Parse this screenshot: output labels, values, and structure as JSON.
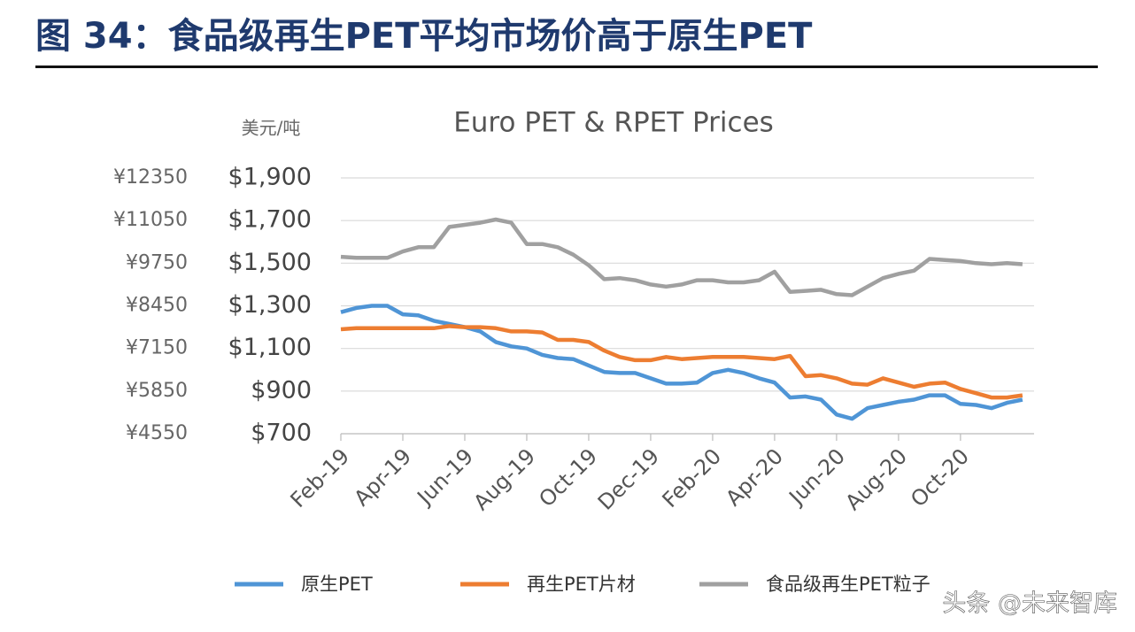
{
  "figure_title": "图 34：食品级再生PET平均市场价高于原生PET",
  "watermark": "头条 @未来智库",
  "chart_data": {
    "type": "line",
    "title": "Euro PET & RPET Prices",
    "y_label": "美元/吨",
    "categories": [
      "Feb-19",
      null,
      null,
      null,
      "Apr-19",
      null,
      null,
      null,
      "Jun-19",
      null,
      null,
      null,
      "Aug-19",
      null,
      null,
      null,
      "Oct-19",
      null,
      null,
      null,
      "Dec-19",
      null,
      null,
      null,
      "Feb-20",
      null,
      null,
      null,
      "Apr-20",
      null,
      null,
      null,
      "Jun-20",
      null,
      null,
      null,
      "Aug-20",
      null,
      null,
      null,
      "Oct-20",
      null,
      null,
      null,
      null
    ],
    "series": [
      {
        "name": "原生PET",
        "color": "#4f95d6",
        "values": [
          1270,
          1290,
          1300,
          1300,
          1260,
          1255,
          1230,
          1215,
          1200,
          1180,
          1130,
          1110,
          1100,
          1070,
          1055,
          1050,
          1020,
          990,
          985,
          985,
          960,
          935,
          935,
          940,
          985,
          1000,
          985,
          960,
          940,
          870,
          875,
          860,
          790,
          770,
          820,
          835,
          850,
          860,
          880,
          880,
          840,
          835,
          820,
          845,
          860
        ]
      },
      {
        "name": "再生PET片材",
        "color": "#ed7d31",
        "values": [
          1190,
          1195,
          1195,
          1195,
          1195,
          1195,
          1195,
          1205,
          1200,
          1200,
          1195,
          1180,
          1180,
          1175,
          1140,
          1140,
          1130,
          1090,
          1060,
          1045,
          1045,
          1060,
          1050,
          1055,
          1060,
          1060,
          1060,
          1055,
          1050,
          1065,
          970,
          975,
          960,
          935,
          930,
          960,
          940,
          920,
          935,
          940,
          910,
          890,
          870,
          870,
          880
        ]
      },
      {
        "name": "食品级再生PET粒子",
        "color": "#a0a0a0",
        "values": [
          1530,
          1525,
          1525,
          1525,
          1555,
          1575,
          1575,
          1670,
          1680,
          1690,
          1705,
          1690,
          1590,
          1590,
          1575,
          1540,
          1490,
          1425,
          1430,
          1420,
          1400,
          1390,
          1400,
          1420,
          1420,
          1410,
          1410,
          1420,
          1460,
          1365,
          1370,
          1375,
          1355,
          1350,
          1390,
          1430,
          1450,
          1465,
          1520,
          1515,
          1510,
          1500,
          1495,
          1500,
          1495
        ]
      }
    ],
    "ylim": [
      700,
      1900
    ],
    "yticks": [
      {
        "value": 700,
        "label": "$700"
      },
      {
        "value": 900,
        "label": "$900"
      },
      {
        "value": 1100,
        "label": "$1,100"
      },
      {
        "value": 1300,
        "label": "$1,300"
      },
      {
        "value": 1500,
        "label": "$1,500"
      },
      {
        "value": 1700,
        "label": "$1,700"
      },
      {
        "value": 1900,
        "label": "$1,900"
      }
    ],
    "y2lim": [
      4550,
      12350
    ],
    "y2ticks": [
      {
        "value": 4550,
        "label": "¥4550"
      },
      {
        "value": 5850,
        "label": "¥5850"
      },
      {
        "value": 7150,
        "label": "¥7150"
      },
      {
        "value": 8450,
        "label": "¥8450"
      },
      {
        "value": 9750,
        "label": "¥9750"
      },
      {
        "value": 11050,
        "label": "¥11050"
      },
      {
        "value": 12350,
        "label": "¥12350"
      }
    ],
    "grid": true,
    "legend": "bottom"
  }
}
